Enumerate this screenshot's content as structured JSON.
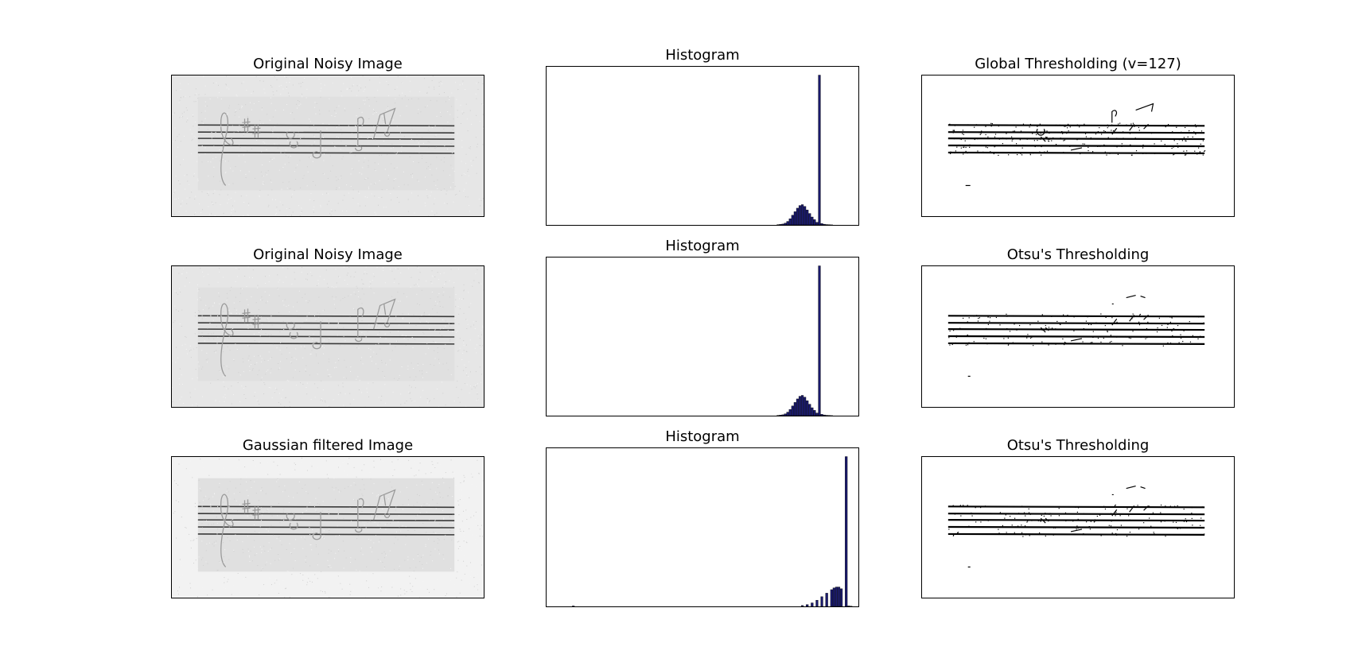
{
  "figure": {
    "rows": [
      {
        "image_title": "Original Noisy Image",
        "hist_title": "Histogram",
        "thresh_title": "Global Thresholding (v=127)"
      },
      {
        "image_title": "Original Noisy Image",
        "hist_title": "Histogram",
        "thresh_title": "Otsu's Thresholding"
      },
      {
        "image_title": "Gaussian filtered Image",
        "hist_title": "Histogram",
        "thresh_title": "Otsu's Thresholding"
      }
    ]
  },
  "colors": {
    "hist_fill": "#1a1a6e",
    "gray_bg_noisy": "#e6e6e6",
    "gray_bg_filtered": "#f2f2f2"
  },
  "chart_data": [
    {
      "type": "bar",
      "title": "Histogram",
      "xlim": [
        0,
        256
      ],
      "x": [
        190,
        192,
        194,
        196,
        198,
        200,
        202,
        204,
        206,
        208,
        210,
        212,
        214,
        216,
        218,
        220,
        222,
        224,
        226,
        228,
        230,
        232,
        234
      ],
      "values": [
        0.3,
        0.6,
        1,
        2,
        4,
        7,
        11,
        15,
        19,
        22,
        23,
        21,
        17,
        13,
        9,
        6,
        3,
        170,
        1.5,
        0.8,
        0.4,
        0.2,
        0.1
      ],
      "grid": false
    },
    {
      "type": "bar",
      "title": "Histogram",
      "xlim": [
        0,
        256
      ],
      "x": [
        190,
        192,
        194,
        196,
        198,
        200,
        202,
        204,
        206,
        208,
        210,
        212,
        214,
        216,
        218,
        220,
        222,
        224,
        226,
        228,
        230,
        232,
        234
      ],
      "values": [
        0.3,
        0.6,
        1,
        2,
        4,
        7,
        11,
        15,
        19,
        22,
        23,
        21,
        17,
        13,
        9,
        6,
        3,
        170,
        1.5,
        0.8,
        0.4,
        0.2,
        0.1
      ],
      "grid": false
    },
    {
      "type": "bar",
      "title": "Histogram",
      "xlim": [
        0,
        256
      ],
      "x": [
        22,
        210,
        214,
        218,
        222,
        226,
        230,
        234,
        236,
        238,
        240,
        242,
        244,
        246,
        248,
        250
      ],
      "values": [
        0.5,
        1,
        2,
        4,
        7,
        11,
        15,
        19,
        21,
        22,
        22,
        20,
        0,
        170,
        0.5,
        0.2
      ],
      "grid": false
    }
  ]
}
